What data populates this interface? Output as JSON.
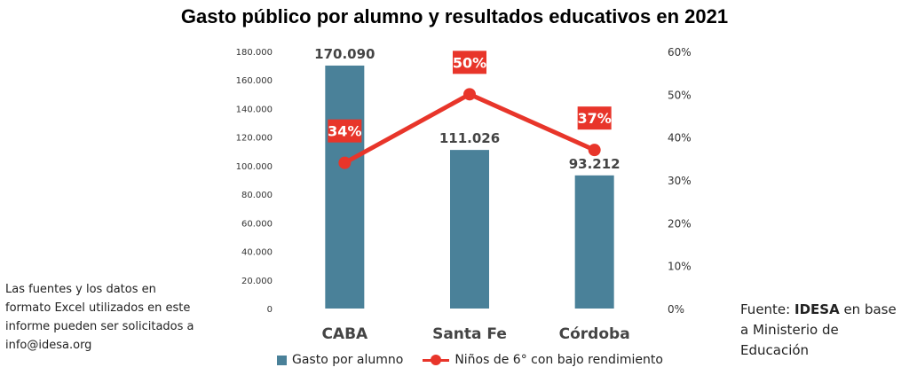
{
  "chart_data": {
    "type": "bar+line",
    "title": "Gasto público por alumno y resultados educativos en 2021",
    "categories": [
      "CABA",
      "Santa Fe",
      "Córdoba"
    ],
    "series": [
      {
        "name": "Gasto por alumno",
        "type": "bar",
        "axis": "left",
        "values": [
          170090,
          111026,
          93212
        ],
        "labels": [
          "170.090",
          "111.026",
          "93.212"
        ],
        "color": "#4a8199"
      },
      {
        "name": "Niños de 6° con bajo rendimiento",
        "type": "line",
        "axis": "right",
        "values": [
          34,
          50,
          37
        ],
        "labels": [
          "34%",
          "50%",
          "37%"
        ],
        "color": "#e8352a"
      }
    ],
    "y_left": {
      "min": 0,
      "max": 180000,
      "ticks": [
        0,
        20000,
        40000,
        60000,
        80000,
        100000,
        120000,
        140000,
        160000,
        180000
      ],
      "tick_labels": [
        "0",
        "20.000",
        "40.000",
        "60.000",
        "80.000",
        "100.000",
        "120.000",
        "140.000",
        "160.000",
        "180.000"
      ]
    },
    "y_right": {
      "min": 0,
      "max": 60,
      "ticks": [
        0,
        10,
        20,
        30,
        40,
        50,
        60
      ],
      "tick_labels": [
        "0%",
        "10%",
        "20%",
        "30%",
        "40%",
        "50%",
        "60%"
      ]
    },
    "grid": false,
    "legend_position": "bottom"
  },
  "note": {
    "text": "Las fuentes y los datos en formato Excel utilizados en este informe pueden ser solicitados a info@idesa.org"
  },
  "source": {
    "prefix": "Fuente: ",
    "bold": "IDESA",
    "suffix": " en base a Ministerio de Educación"
  }
}
